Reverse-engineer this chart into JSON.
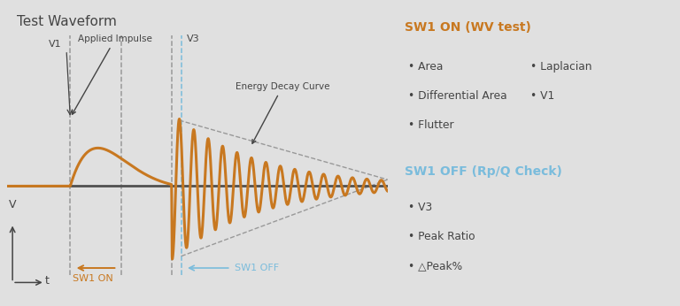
{
  "title": "Test Waveform",
  "bg_color": "#e0e0e0",
  "panel_bg": "#ebebeb",
  "waveform_color": "#c87820",
  "axis_color": "#505050",
  "dashed_color": "#999999",
  "blue_dashed_color": "#7abcdc",
  "text_color": "#444444",
  "orange_title": "#c87820",
  "blue_title": "#7abcdc",
  "annotations": {
    "applied_impulse": "Applied Impulse",
    "v1": "V1",
    "v3": "V3",
    "energy_decay": "Energy Decay Curve",
    "sw1_on": "SW1 ON",
    "sw1_off": "SW1 OFF",
    "v_label": "V",
    "t_label": "t"
  },
  "sw1_on_items": {
    "title": "SW1 ON (WV test)",
    "col1": [
      "Area",
      "Differential Area",
      "Flutter"
    ],
    "col2": [
      "Laplacian",
      "V1"
    ]
  },
  "sw1_off_items": {
    "title": "SW1 OFF (Rp/Q Check)",
    "items": [
      "V3",
      "Peak Ratio",
      "△Peak%"
    ]
  },
  "t_total": 12.0,
  "t_impulse": 2.0,
  "t_sw1_off": 5.2,
  "t_sw1_off2": 5.5,
  "peak_amplitude": 0.72,
  "osc_amplitude": 0.45,
  "osc_freq": 2.2,
  "osc_decay": 0.38
}
